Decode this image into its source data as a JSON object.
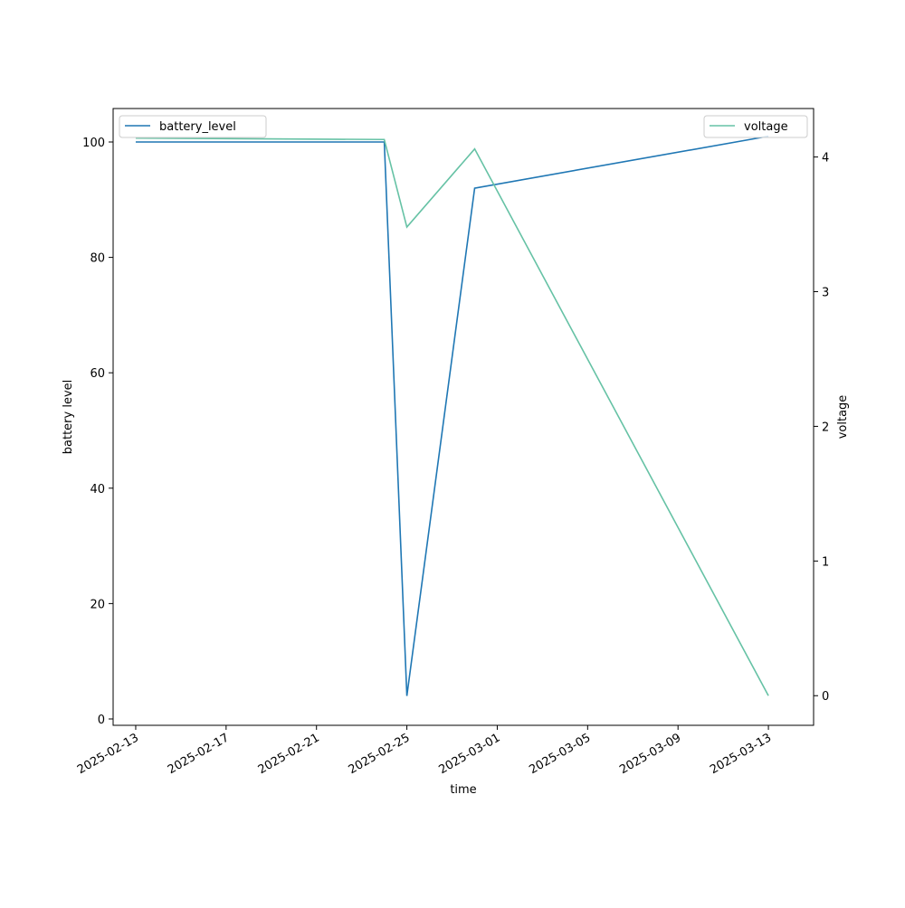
{
  "chart_data": {
    "type": "line",
    "x": [
      "2025-02-13",
      "2025-02-24",
      "2025-02-25",
      "2025-02-28",
      "2025-03-13"
    ],
    "xlim": [
      "2025-02-12",
      "2025-03-15"
    ],
    "xticks": [
      "2025-02-13",
      "2025-02-17",
      "2025-02-21",
      "2025-02-25",
      "2025-03-01",
      "2025-03-05",
      "2025-03-09",
      "2025-03-13"
    ],
    "xlabel": "time",
    "ylabel": "battery level",
    "y2label": "voltage",
    "ylim": [
      -1.1,
      105.8
    ],
    "yticks": [
      0,
      20,
      40,
      60,
      80,
      100
    ],
    "y2lim": [
      -0.22,
      4.36
    ],
    "y2ticks": [
      0,
      1,
      2,
      3,
      4
    ],
    "grid": false,
    "series": [
      {
        "name": "battery_level",
        "color": "#1f77b4",
        "axis": "y",
        "legend": "upper left",
        "values": [
          100,
          100,
          4,
          92,
          101
        ]
      },
      {
        "name": "voltage",
        "color": "#66c2a5",
        "axis": "y2",
        "legend": "upper right",
        "values": [
          4.14,
          4.13,
          3.48,
          4.06,
          0
        ]
      }
    ]
  }
}
